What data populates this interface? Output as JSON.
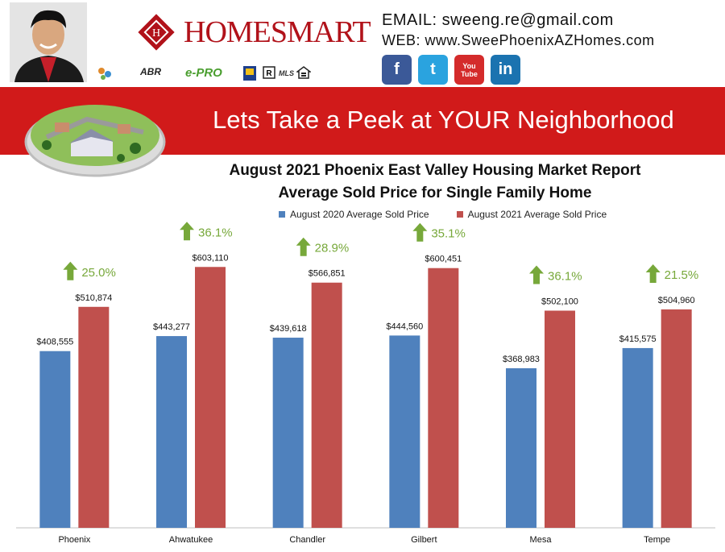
{
  "contact": {
    "email_line": "EMAIL: sweeng.re@gmail.com",
    "web_line": "WEB: www.SweePhoenixAZHomes.com"
  },
  "brand": {
    "logo_text": "HOMESMART"
  },
  "social": [
    {
      "name": "facebook-icon",
      "glyph": "f",
      "color": "#3b5998"
    },
    {
      "name": "twitter-icon",
      "glyph": "t",
      "color": "#2aa3df"
    },
    {
      "name": "youtube-icon",
      "glyph": "You Tube",
      "color": "#d42b2b"
    },
    {
      "name": "linkedin-icon",
      "glyph": "in",
      "color": "#1b73b0"
    }
  ],
  "badges": [
    "ABR",
    "e-PRO",
    "MLS"
  ],
  "banner": {
    "title": "Lets Take a Peek at YOUR Neighborhood"
  },
  "colors": {
    "series_2020": "#4f81bd",
    "series_2021": "#c0504d",
    "arrow": "#77a83a",
    "banner": "#d11a1a"
  },
  "chart_data": {
    "type": "bar",
    "title": "August 2021 Phoenix East Valley Housing Market Report",
    "subtitle": "Average Sold Price for Single Family Home",
    "categories": [
      "Phoenix",
      "Ahwatukee",
      "Chandler",
      "Gilbert",
      "Mesa",
      "Tempe"
    ],
    "series": [
      {
        "name": "August 2020 Average Sold Price",
        "values": [
          408555,
          443277,
          439618,
          444560,
          368983,
          415575
        ],
        "labels": [
          "$408,555",
          "$443,277",
          "$439,618",
          "$444,560",
          "$368,983",
          "$415,575"
        ]
      },
      {
        "name": "August 2021 Average Sold Price",
        "values": [
          510874,
          603110,
          566851,
          600451,
          502100,
          504960
        ],
        "labels": [
          "$510,874",
          "$603,110",
          "$566,851",
          "$600,451",
          "$502,100",
          "$504,960"
        ]
      }
    ],
    "annotations": [
      "25.0%",
      "36.1%",
      "28.9%",
      "35.1%",
      "36.1%",
      "21.5%"
    ],
    "ylim": [
      0,
      680000
    ],
    "grid": false,
    "legend": "top"
  }
}
